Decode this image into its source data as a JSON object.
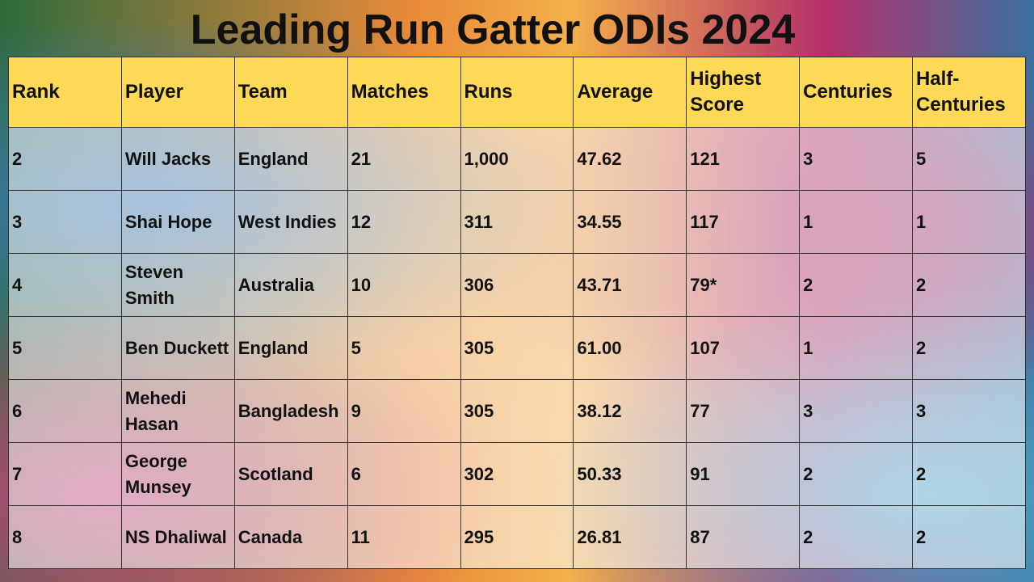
{
  "header": {
    "title": "Leading Run Gatter ODIs 2024"
  },
  "table": {
    "columns": [
      "Rank",
      "Player",
      "Team",
      "Matches",
      "Runs",
      "Average",
      "Highest Score",
      "Centuries",
      "Half-Centuries"
    ],
    "rows": [
      [
        "2",
        "Will Jacks",
        "England",
        "21",
        "1,000",
        "47.62",
        "121",
        "3",
        "5"
      ],
      [
        "3",
        "Shai Hope",
        "West Indies",
        "12",
        "311",
        "34.55",
        "117",
        "1",
        "1"
      ],
      [
        "4",
        "Steven Smith",
        "Australia",
        "10",
        "306",
        "43.71",
        "79*",
        "2",
        "2"
      ],
      [
        "5",
        "Ben Duckett",
        "England",
        "5",
        "305",
        "61.00",
        "107",
        "1",
        "2"
      ],
      [
        "6",
        "Mehedi Hasan",
        "Bangladesh",
        "9",
        "305",
        "38.12",
        "77",
        "3",
        "3"
      ],
      [
        "7",
        "George Munsey",
        "Scotland",
        "6",
        "302",
        "50.33",
        "91",
        "2",
        "2"
      ],
      [
        "8",
        "NS Dhaliwal",
        "Canada",
        "11",
        "295",
        "26.81",
        "87",
        "2",
        "2"
      ]
    ]
  }
}
